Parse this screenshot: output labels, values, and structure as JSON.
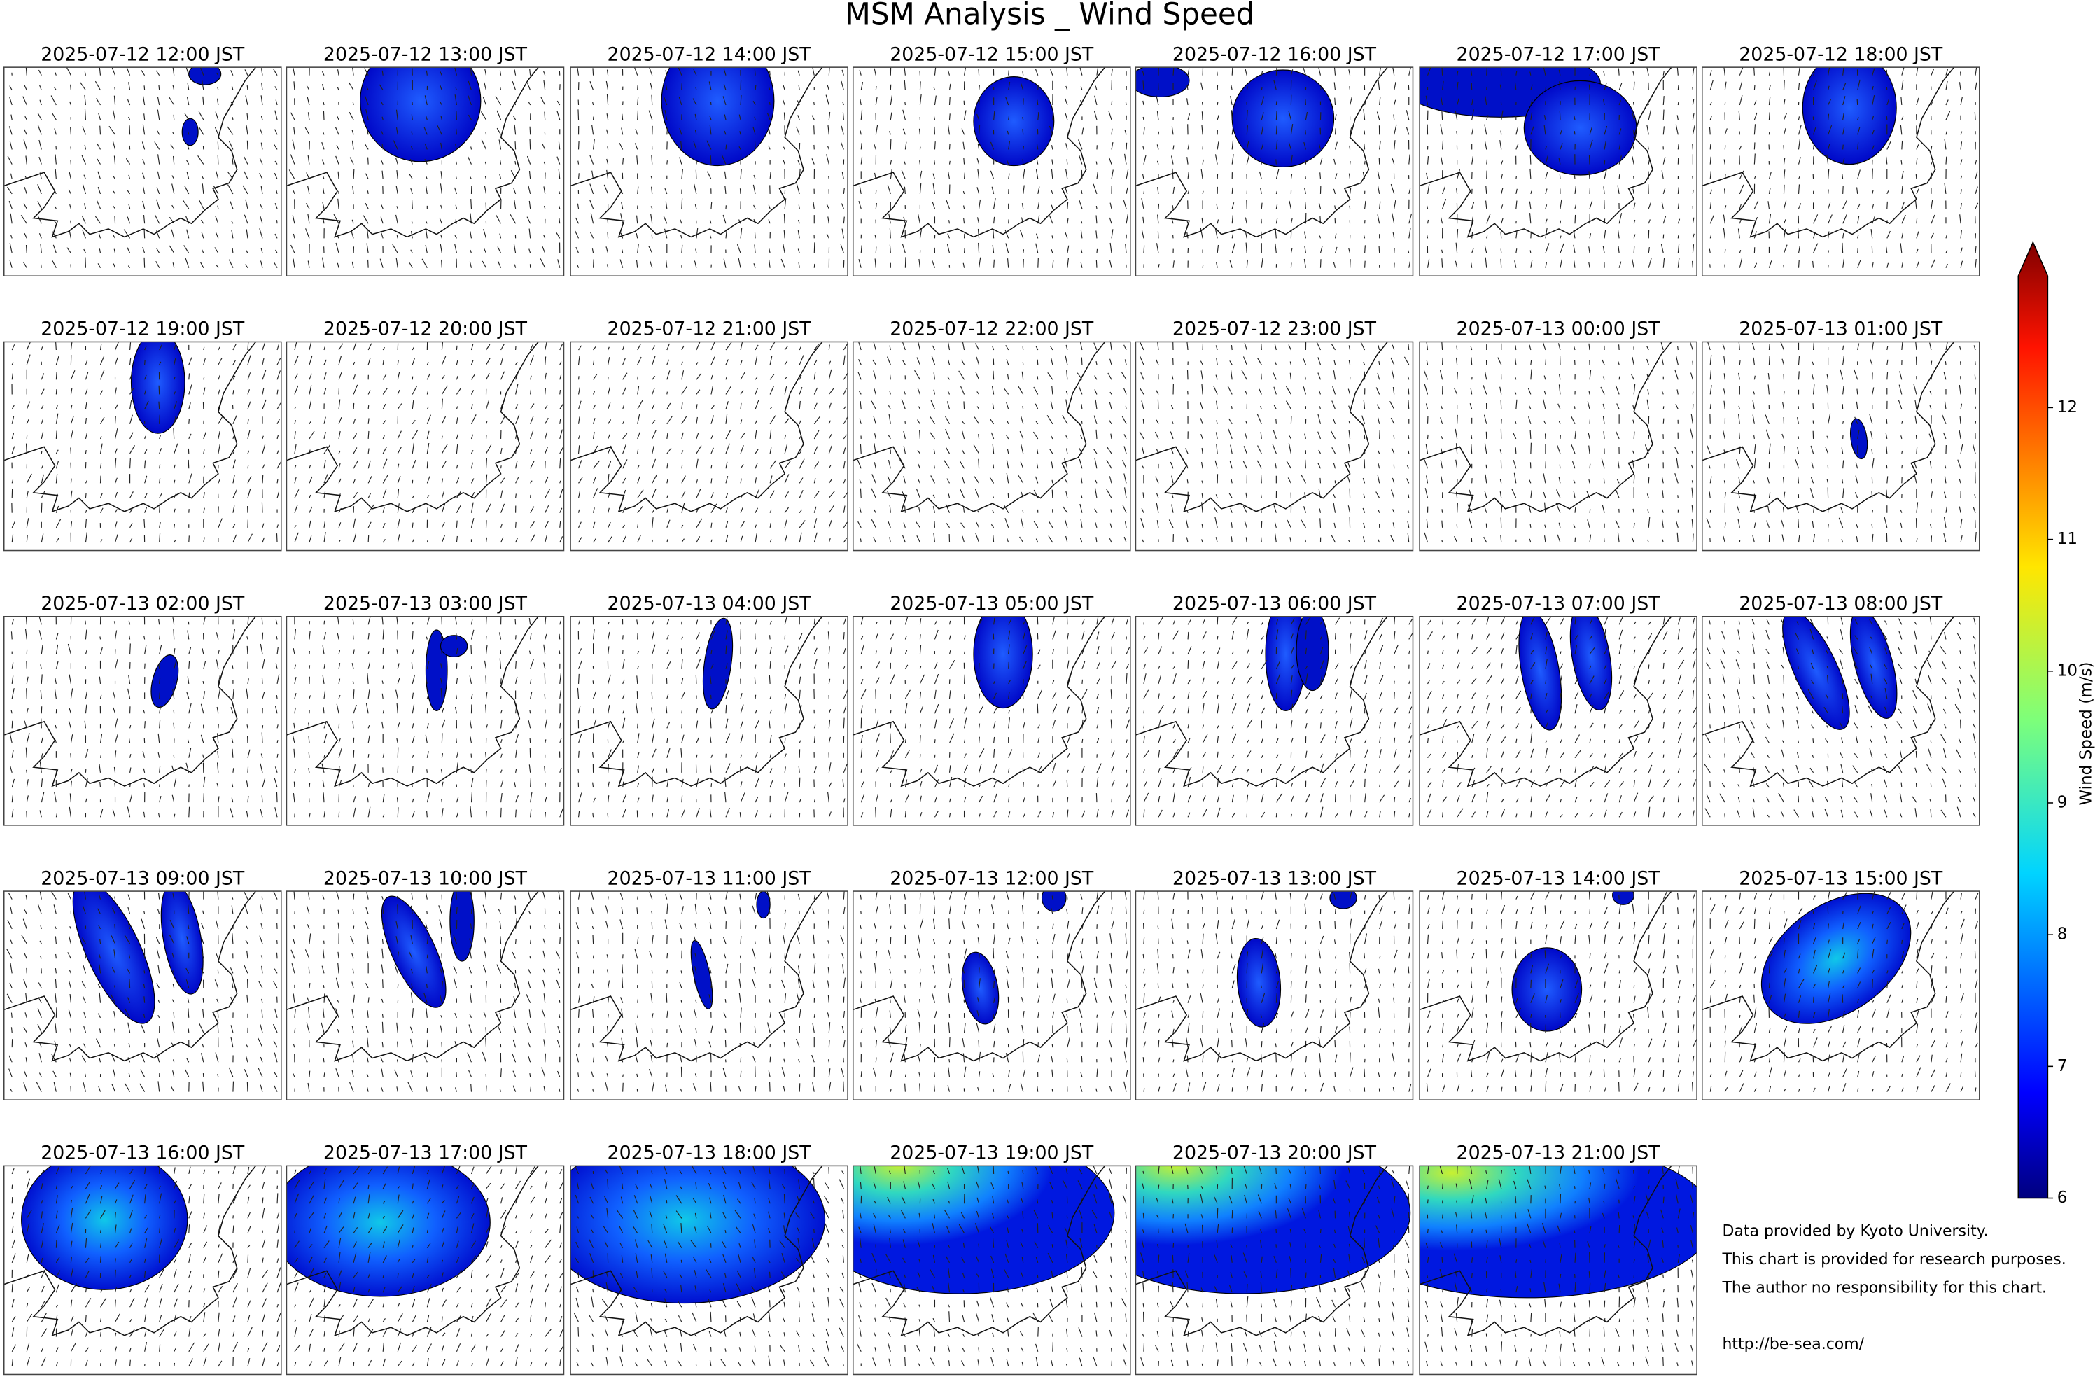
{
  "chart_data": {
    "type": "panel-grid",
    "title": "MSM Analysis _ Wind Speed",
    "panels": [
      "2025-07-12 12:00 JST",
      "2025-07-12 13:00 JST",
      "2025-07-12 14:00 JST",
      "2025-07-12 15:00 JST",
      "2025-07-12 16:00 JST",
      "2025-07-12 17:00 JST",
      "2025-07-12 18:00 JST",
      "2025-07-12 19:00 JST",
      "2025-07-12 20:00 JST",
      "2025-07-12 21:00 JST",
      "2025-07-12 22:00 JST",
      "2025-07-12 23:00 JST",
      "2025-07-13 00:00 JST",
      "2025-07-13 01:00 JST",
      "2025-07-13 02:00 JST",
      "2025-07-13 03:00 JST",
      "2025-07-13 04:00 JST",
      "2025-07-13 05:00 JST",
      "2025-07-13 06:00 JST",
      "2025-07-13 07:00 JST",
      "2025-07-13 08:00 JST",
      "2025-07-13 09:00 JST",
      "2025-07-13 10:00 JST",
      "2025-07-13 11:00 JST",
      "2025-07-13 12:00 JST",
      "2025-07-13 13:00 JST",
      "2025-07-13 14:00 JST",
      "2025-07-13 15:00 JST",
      "2025-07-13 16:00 JST",
      "2025-07-13 17:00 JST",
      "2025-07-13 18:00 JST",
      "2025-07-13 19:00 JST",
      "2025-07-13 20:00 JST",
      "2025-07-13 21:00 JST"
    ],
    "colorbar": {
      "label": "Wind Speed (m/s)",
      "lim": [
        6,
        13
      ],
      "ticks": [
        6,
        7,
        8,
        9,
        10,
        11,
        12
      ],
      "colormap": "jet"
    }
  },
  "notes": [
    "Data provided by Kyoto University.",
    "This chart is provided for research purposes.",
    "The author no responsibility for this chart.",
    "http://be-sea.com/"
  ]
}
